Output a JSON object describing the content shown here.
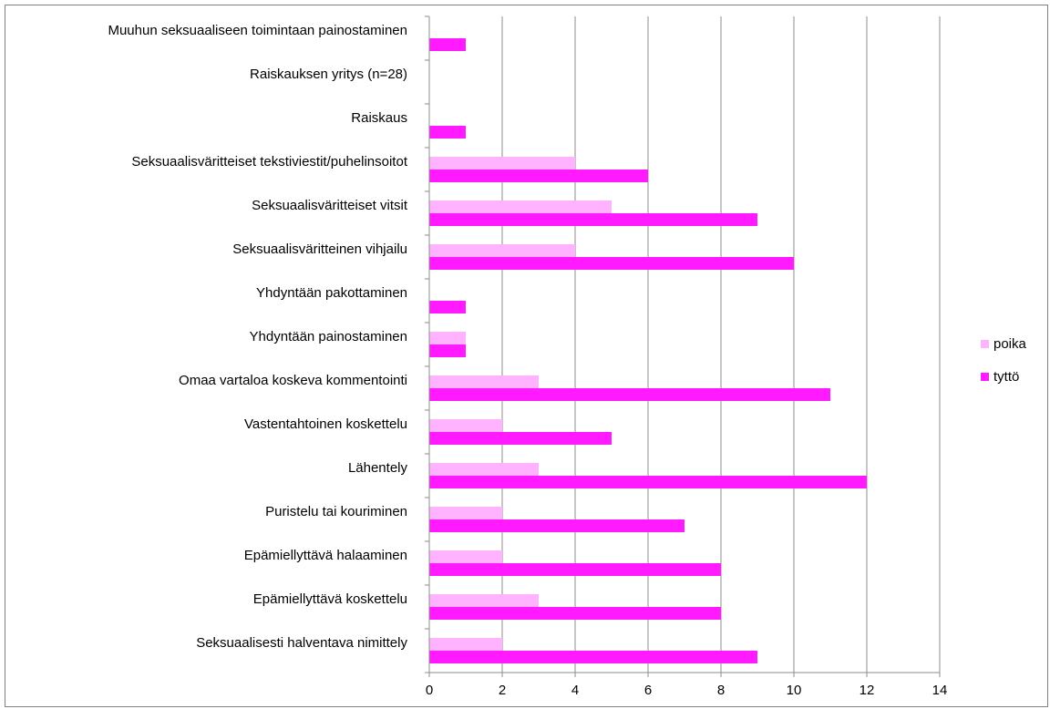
{
  "chart_data": {
    "type": "bar",
    "orientation": "horizontal",
    "categories": [
      "Muuhun seksuaaliseen toimintaan painostaminen",
      "Raiskauksen yritys (n=28)",
      "Raiskaus",
      "Seksuaalisväritteiset tekstiviestit/puhelinsoitot",
      "Seksuaalisväritteiset vitsit",
      "Seksuaalisväritteinen vihjailu",
      "Yhdyntään pakottaminen",
      "Yhdyntään painostaminen",
      "Omaa vartaloa koskeva kommentointi",
      "Vastentahtoinen koskettelu",
      "Lähentely",
      "Puristelu tai kouriminen",
      "Epämiellyttävä halaaminen",
      "Epämiellyttävä koskettelu",
      "Seksuaalisesti halventava nimittely"
    ],
    "series": [
      {
        "name": "poika",
        "color": "#ffb3ff",
        "values": [
          0,
          0,
          0,
          4,
          5,
          4,
          0,
          1,
          3,
          2,
          3,
          2,
          2,
          3,
          2
        ]
      },
      {
        "name": "tyttö",
        "color": "#ff1aff",
        "values": [
          1,
          0,
          1,
          6,
          9,
          10,
          1,
          1,
          11,
          5,
          12,
          7,
          8,
          8,
          9
        ]
      }
    ],
    "xlim": [
      0,
      14
    ],
    "xticks": [
      "0",
      "2",
      "4",
      "6",
      "8",
      "10",
      "12",
      "14"
    ],
    "grid": true,
    "legend_position": "right"
  }
}
